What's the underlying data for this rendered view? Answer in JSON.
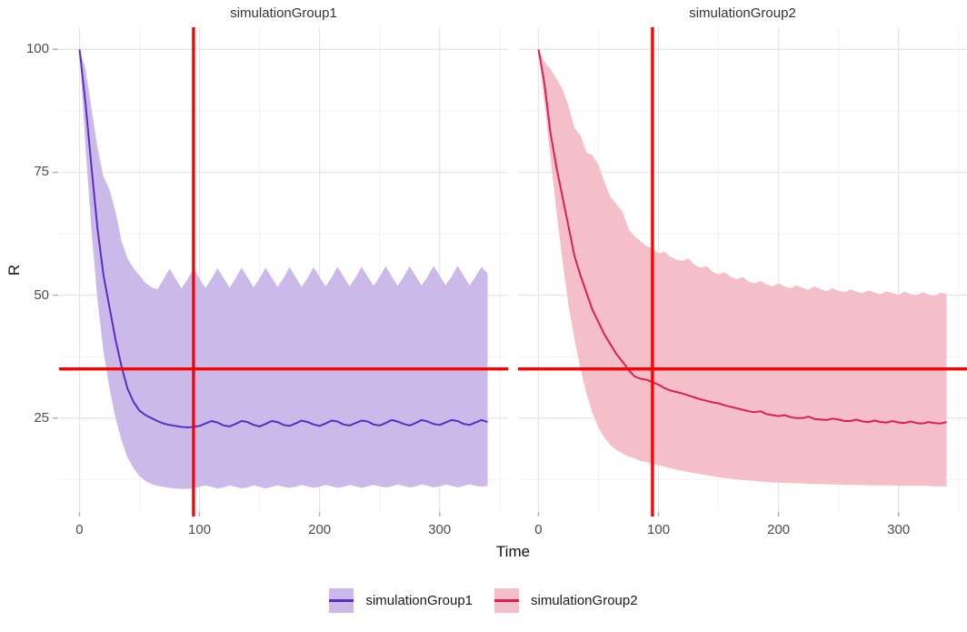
{
  "chart_data": {
    "type": "line",
    "facet_titles": [
      "simulationGroup1",
      "simulationGroup2"
    ],
    "xlabel": "Time",
    "ylabel": "R",
    "x_ticks": [
      0,
      100,
      200,
      300
    ],
    "y_ticks": [
      25,
      50,
      75,
      100
    ],
    "x_range": [
      -17,
      357
    ],
    "y_range": [
      5.9,
      104.5
    ],
    "grid": {
      "major_color": "#e6e6e6",
      "minor_color": "#f2f2f2",
      "x_major": [
        0,
        100,
        200,
        300
      ],
      "x_minor": [
        50,
        150,
        250,
        350
      ],
      "y_major": [
        25,
        50,
        75,
        100
      ],
      "y_minor": [
        12.5,
        37.5,
        62.5,
        87.5
      ]
    },
    "reference_lines": {
      "vline_x": 95,
      "hline_y": 35,
      "color": "#fe0000",
      "width": 3.3
    },
    "tick_mark_color": "#b3b3b3",
    "x": [
      0,
      5,
      10,
      15,
      20,
      25,
      30,
      35,
      40,
      45,
      50,
      55,
      60,
      65,
      70,
      75,
      80,
      85,
      90,
      95,
      100,
      105,
      110,
      115,
      120,
      125,
      130,
      135,
      140,
      145,
      150,
      155,
      160,
      165,
      170,
      175,
      180,
      185,
      190,
      195,
      200,
      205,
      210,
      215,
      220,
      225,
      230,
      235,
      240,
      245,
      250,
      255,
      260,
      265,
      270,
      275,
      280,
      285,
      290,
      295,
      300,
      305,
      310,
      315,
      320,
      325,
      330,
      335,
      340
    ],
    "series": [
      {
        "name": "simulationGroup1",
        "line_color": "#5a2dc8",
        "fill_color": "#cbb9e9",
        "mean": [
          100,
          89,
          76,
          63.5,
          54,
          47.5,
          41,
          35.5,
          31,
          28.3,
          26.5,
          25.6,
          25,
          24.4,
          23.9,
          23.6,
          23.4,
          23.2,
          23.1,
          23.2,
          23.4,
          23.9,
          24.4,
          24.1,
          23.5,
          23.3,
          23.8,
          24.4,
          24.2,
          23.6,
          23.3,
          23.8,
          24.4,
          24.2,
          23.6,
          23.4,
          23.9,
          24.5,
          24.2,
          23.7,
          23.4,
          23.9,
          24.5,
          24.3,
          23.7,
          23.5,
          24,
          24.5,
          24.3,
          23.7,
          23.5,
          24,
          24.6,
          24.3,
          23.8,
          23.5,
          24,
          24.6,
          24.3,
          23.8,
          23.6,
          24.1,
          24.6,
          24.4,
          23.8,
          23.6,
          24.1,
          24.6,
          24.2
        ],
        "upper": [
          100,
          96,
          88,
          80,
          74,
          71.5,
          67,
          61,
          57.5,
          55.5,
          54,
          52.5,
          51.6,
          51.2,
          53.2,
          55.4,
          53.4,
          51.4,
          53.2,
          55.4,
          53.4,
          51.5,
          53.3,
          55.5,
          53.5,
          51.5,
          53.4,
          55.6,
          53.6,
          51.6,
          53.4,
          55.6,
          53.6,
          51.7,
          53.5,
          55.7,
          53.7,
          51.7,
          53.5,
          55.7,
          53.7,
          51.8,
          53.6,
          55.8,
          53.8,
          51.8,
          53.6,
          55.8,
          53.8,
          51.9,
          53.7,
          55.9,
          53.9,
          51.9,
          53.7,
          55.9,
          53.9,
          52,
          53.8,
          56,
          54,
          52,
          53.8,
          56,
          54,
          52,
          53.8,
          55.8,
          54.4
        ],
        "lower": [
          100,
          80,
          63,
          49,
          38.5,
          31,
          25,
          20.5,
          17,
          14.8,
          13.2,
          12.2,
          11.6,
          11.2,
          11,
          10.8,
          10.7,
          10.6,
          10.6,
          10.7,
          11,
          11.3,
          11,
          10.7,
          10.9,
          11.3,
          11,
          10.7,
          10.9,
          11.3,
          11,
          10.7,
          11,
          11.3,
          11,
          10.8,
          11,
          11.4,
          11.1,
          10.8,
          11,
          11.4,
          11.1,
          10.8,
          11,
          11.4,
          11.1,
          10.8,
          11.1,
          11.4,
          11.1,
          10.9,
          11.1,
          11.5,
          11.2,
          10.9,
          11.1,
          11.5,
          11.2,
          10.9,
          11.1,
          11.5,
          11.2,
          10.9,
          11.2,
          11.5,
          11.2,
          11,
          11.2
        ]
      },
      {
        "name": "simulationGroup2",
        "line_color": "#dd2050",
        "fill_color": "#f5bfca",
        "mean": [
          100,
          93,
          83,
          76,
          70,
          64,
          58,
          54,
          50.5,
          47,
          44.5,
          42,
          40,
          38,
          36.5,
          34.8,
          33.5,
          33,
          32.8,
          32.3,
          31.8,
          31.1,
          30.6,
          30.3,
          30,
          29.6,
          29.2,
          28.8,
          28.5,
          28.2,
          28,
          27.6,
          27.3,
          27,
          26.7,
          26.4,
          26.2,
          26.4,
          25.8,
          25.6,
          25.4,
          25.6,
          25.2,
          25,
          25,
          25.3,
          24.8,
          24.7,
          24.6,
          24.9,
          24.7,
          24.4,
          24.4,
          24.7,
          24.3,
          24.2,
          24.5,
          24.2,
          24.1,
          24.4,
          24.1,
          24,
          24.3,
          24,
          23.9,
          24.2,
          24,
          23.9,
          24.2
        ],
        "upper": [
          100,
          97.5,
          96,
          94,
          92,
          88.5,
          84,
          82.5,
          79,
          78.5,
          76.5,
          73,
          70,
          68.5,
          67,
          63.5,
          62,
          61,
          60,
          59.5,
          58.5,
          58.8,
          57.8,
          57.2,
          57,
          57.5,
          56.2,
          55.6,
          55.9,
          54.8,
          54.2,
          54.7,
          53.8,
          53.2,
          53.7,
          52.8,
          52.4,
          52.9,
          52.2,
          51.8,
          52.4,
          51.8,
          51.4,
          52,
          51.5,
          51.1,
          51.8,
          51.2,
          50.8,
          51.4,
          50.9,
          50.6,
          51.2,
          50.7,
          50.4,
          51,
          50.5,
          50.2,
          50.8,
          50.4,
          50.1,
          50.7,
          50.2,
          50,
          50.6,
          50.1,
          49.9,
          50.5,
          50.2
        ],
        "lower": [
          100,
          89,
          78,
          67,
          57,
          48,
          41,
          35,
          30,
          26,
          23,
          21,
          19.5,
          18.5,
          17.8,
          17.2,
          16.8,
          16.3,
          16,
          15.7,
          15.4,
          15.1,
          14.8,
          14.5,
          14.3,
          14,
          13.8,
          13.6,
          13.4,
          13.2,
          13,
          12.8,
          12.7,
          12.5,
          12.4,
          12.3,
          12.2,
          12.1,
          12,
          11.9,
          11.9,
          11.8,
          11.8,
          11.7,
          11.7,
          11.6,
          11.6,
          11.6,
          11.5,
          11.5,
          11.5,
          11.4,
          11.4,
          11.4,
          11.4,
          11.3,
          11.3,
          11.3,
          11.3,
          11.3,
          11.2,
          11.2,
          11.2,
          11.2,
          11.2,
          11.2,
          11.1,
          11.1,
          11.1
        ]
      }
    ],
    "legend_position": "bottom"
  }
}
